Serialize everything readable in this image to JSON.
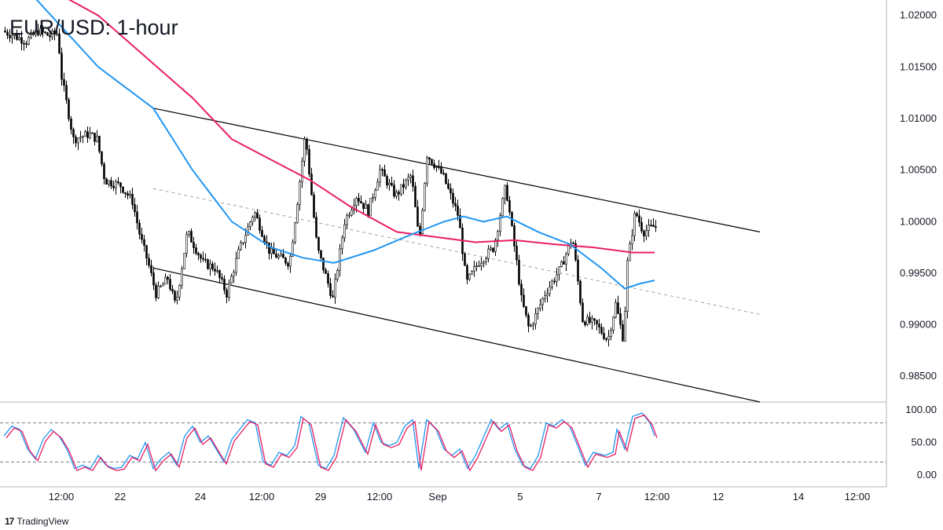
{
  "chart_data": [
    {
      "type": "candlestick",
      "title": "EUR/USD: 1-hour",
      "x_tick_labels": [
        "12:00",
        "22",
        "24",
        "12:00",
        "29",
        "12:00",
        "Sep",
        "5",
        "7",
        "12:00",
        "12",
        "14",
        "12:00"
      ],
      "y_tick_labels": [
        "1.02000",
        "1.01500",
        "1.01000",
        "1.00500",
        "1.00000",
        "0.99500",
        "0.99000",
        "0.98500"
      ],
      "ylim": [
        0.9825,
        1.0215
      ],
      "grid": false,
      "price_path": [
        [
          0,
          1.0185
        ],
        [
          15,
          1.018
        ],
        [
          30,
          1.0175
        ],
        [
          45,
          1.0185
        ],
        [
          60,
          1.018
        ],
        [
          70,
          1.0183
        ],
        [
          75,
          1.014
        ],
        [
          80,
          1.012
        ],
        [
          90,
          1.008
        ],
        [
          110,
          1.0085
        ],
        [
          120,
          1.008
        ],
        [
          130,
          1.004
        ],
        [
          150,
          1.0035
        ],
        [
          165,
          1.002
        ],
        [
          175,
          0.9985
        ],
        [
          185,
          0.996
        ],
        [
          195,
          0.993
        ],
        [
          210,
          0.9945
        ],
        [
          220,
          0.9918
        ],
        [
          235,
          0.999
        ],
        [
          255,
          0.996
        ],
        [
          270,
          0.9955
        ],
        [
          285,
          0.993
        ],
        [
          300,
          0.997
        ],
        [
          320,
          1.001
        ],
        [
          340,
          0.997
        ],
        [
          365,
          0.996
        ],
        [
          375,
          1.002
        ],
        [
          385,
          1.0085
        ],
        [
          400,
          0.9975
        ],
        [
          420,
          0.9925
        ],
        [
          435,
          1.0
        ],
        [
          450,
          1.0025
        ],
        [
          465,
          1.001
        ],
        [
          480,
          1.005
        ],
        [
          500,
          1.0025
        ],
        [
          520,
          1.0045
        ],
        [
          530,
          0.998
        ],
        [
          540,
          1.0065
        ],
        [
          560,
          1.0045
        ],
        [
          580,
          1.0005
        ],
        [
          590,
          0.994
        ],
        [
          605,
          0.996
        ],
        [
          625,
          0.9975
        ],
        [
          640,
          1.0035
        ],
        [
          655,
          0.9955
        ],
        [
          660,
          0.9925
        ],
        [
          670,
          0.9895
        ],
        [
          690,
          0.993
        ],
        [
          710,
          0.9955
        ],
        [
          725,
          0.9985
        ],
        [
          738,
          0.9905
        ],
        [
          755,
          0.99
        ],
        [
          770,
          0.9885
        ],
        [
          780,
          0.992
        ],
        [
          790,
          0.9885
        ],
        [
          795,
          0.996
        ],
        [
          805,
          1.001
        ],
        [
          815,
          0.999
        ],
        [
          828,
          0.9995
        ]
      ],
      "series": [
        {
          "name": "",
          "type": "line",
          "color": "#e91e63",
          "points": [
            [
              0,
              1.025
            ],
            [
              60,
              1.0225
            ],
            [
              120,
              1.02
            ],
            [
              180,
              1.016
            ],
            [
              240,
              1.012
            ],
            [
              290,
              1.008
            ],
            [
              340,
              1.006
            ],
            [
              390,
              1.004
            ],
            [
              440,
              1.0015
            ],
            [
              500,
              0.999
            ],
            [
              550,
              0.9985
            ],
            [
              600,
              0.998
            ],
            [
              650,
              0.9982
            ],
            [
              700,
              0.9978
            ],
            [
              750,
              0.9975
            ],
            [
              800,
              0.997
            ],
            [
              828,
              0.997
            ]
          ]
        },
        {
          "name": "",
          "type": "line",
          "color": "#2196f3",
          "points": [
            [
              0,
              1.025
            ],
            [
              60,
              1.02
            ],
            [
              120,
              1.015
            ],
            [
              190,
              1.011
            ],
            [
              240,
              1.005
            ],
            [
              290,
              1.0
            ],
            [
              340,
              0.9975
            ],
            [
              380,
              0.9965
            ],
            [
              420,
              0.996
            ],
            [
              470,
              0.9972
            ],
            [
              520,
              0.9988
            ],
            [
              560,
              1.0
            ],
            [
              585,
              1.0005
            ],
            [
              610,
              1.0
            ],
            [
              640,
              1.0005
            ],
            [
              680,
              0.999
            ],
            [
              720,
              0.9978
            ],
            [
              760,
              0.9955
            ],
            [
              790,
              0.9935
            ],
            [
              810,
              0.994
            ],
            [
              828,
              0.9943
            ]
          ]
        }
      ],
      "annotations": [
        {
          "type": "trendline",
          "name": "channel-upper",
          "color": "#000000",
          "points": [
            [
              190,
              1.011
            ],
            [
              962,
              0.999
            ]
          ]
        },
        {
          "type": "trendline",
          "name": "channel-lower",
          "color": "#000000",
          "points": [
            [
              190,
              0.9955
            ],
            [
              962,
              0.9825
            ]
          ]
        },
        {
          "type": "trendline",
          "name": "channel-middle",
          "color": "#9e9e9e",
          "dashed": true,
          "points": [
            [
              190,
              1.0032
            ],
            [
              962,
              0.991
            ]
          ]
        }
      ]
    },
    {
      "type": "line",
      "title": "",
      "y_tick_labels": [
        "100.00",
        "50.00",
        "0.00"
      ],
      "ylim": [
        0,
        100
      ],
      "reference_lines": [
        80,
        20
      ],
      "series": [
        {
          "name": "",
          "color": "#2196f3"
        },
        {
          "name": "",
          "color": "#e91e63"
        }
      ],
      "oscillator_points": [
        [
          0,
          60
        ],
        [
          10,
          75
        ],
        [
          20,
          70
        ],
        [
          30,
          40
        ],
        [
          40,
          25
        ],
        [
          50,
          55
        ],
        [
          60,
          70
        ],
        [
          70,
          60
        ],
        [
          80,
          40
        ],
        [
          90,
          10
        ],
        [
          100,
          15
        ],
        [
          110,
          10
        ],
        [
          120,
          30
        ],
        [
          130,
          15
        ],
        [
          140,
          10
        ],
        [
          150,
          12
        ],
        [
          160,
          30
        ],
        [
          170,
          25
        ],
        [
          180,
          50
        ],
        [
          190,
          10
        ],
        [
          200,
          25
        ],
        [
          210,
          35
        ],
        [
          220,
          15
        ],
        [
          230,
          60
        ],
        [
          240,
          75
        ],
        [
          250,
          50
        ],
        [
          260,
          60
        ],
        [
          270,
          40
        ],
        [
          280,
          20
        ],
        [
          290,
          55
        ],
        [
          300,
          70
        ],
        [
          310,
          85
        ],
        [
          320,
          80
        ],
        [
          330,
          20
        ],
        [
          340,
          15
        ],
        [
          350,
          35
        ],
        [
          360,
          30
        ],
        [
          370,
          45
        ],
        [
          378,
          90
        ],
        [
          388,
          80
        ],
        [
          400,
          15
        ],
        [
          410,
          10
        ],
        [
          420,
          30
        ],
        [
          432,
          88
        ],
        [
          445,
          70
        ],
        [
          460,
          35
        ],
        [
          470,
          80
        ],
        [
          480,
          50
        ],
        [
          490,
          45
        ],
        [
          500,
          50
        ],
        [
          510,
          75
        ],
        [
          520,
          85
        ],
        [
          528,
          10
        ],
        [
          538,
          85
        ],
        [
          550,
          70
        ],
        [
          560,
          40
        ],
        [
          570,
          30
        ],
        [
          580,
          40
        ],
        [
          590,
          10
        ],
        [
          600,
          30
        ],
        [
          620,
          85
        ],
        [
          630,
          70
        ],
        [
          640,
          80
        ],
        [
          650,
          40
        ],
        [
          660,
          15
        ],
        [
          670,
          10
        ],
        [
          680,
          30
        ],
        [
          690,
          80
        ],
        [
          700,
          75
        ],
        [
          710,
          85
        ],
        [
          720,
          75
        ],
        [
          730,
          45
        ],
        [
          740,
          15
        ],
        [
          750,
          35
        ],
        [
          765,
          30
        ],
        [
          775,
          35
        ],
        [
          780,
          70
        ],
        [
          790,
          40
        ],
        [
          800,
          90
        ],
        [
          812,
          95
        ],
        [
          822,
          80
        ],
        [
          828,
          60
        ]
      ]
    }
  ],
  "brand": {
    "logo": "17",
    "name": "TradingView"
  }
}
